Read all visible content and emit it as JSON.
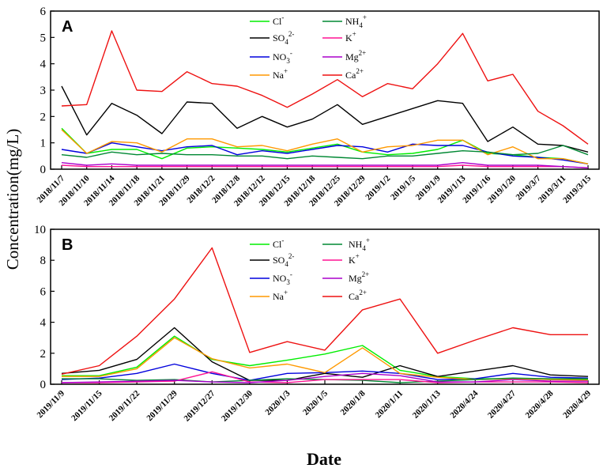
{
  "shared": {
    "ylabel": "Concentration(mg/L)",
    "xlabel": "Date"
  },
  "chart_data": [
    {
      "type": "line",
      "panel": "A",
      "ylim": [
        0,
        6
      ],
      "yticks": [
        "0",
        "1",
        "2",
        "3",
        "4",
        "5",
        "6"
      ],
      "legend_position": "top-center",
      "categories": [
        "2018/11/7",
        "2018/11/10",
        "2018/11/14",
        "2018/11/18",
        "2018/11/21",
        "2018/11/29",
        "2018/12/2",
        "2018/12/8",
        "2018/12/12",
        "2018/12/15",
        "2018/12/18",
        "2018/12/25",
        "2018/12/29",
        "2019/1/2",
        "2019/1/5",
        "2019/1/9",
        "2019/1/13",
        "2019/1/16",
        "2019/1/20",
        "2019/3/7",
        "2019/3/11",
        "2019/3/15"
      ],
      "series": [
        {
          "key": "Cl",
          "name": "Cl",
          "sup": "-",
          "sub": "",
          "color": "#00ee00",
          "values": [
            1.55,
            0.6,
            0.75,
            0.75,
            0.4,
            0.8,
            0.85,
            0.8,
            0.75,
            0.65,
            0.8,
            0.95,
            0.65,
            0.55,
            0.6,
            0.75,
            1.1,
            0.6,
            0.55,
            0.45,
            0.4,
            0.2
          ]
        },
        {
          "key": "SO4",
          "name": "SO",
          "sup": "2-",
          "sub": "4",
          "color": "#000000",
          "values": [
            3.15,
            1.3,
            2.5,
            2.05,
            1.35,
            2.55,
            2.5,
            1.55,
            2.0,
            1.6,
            1.9,
            2.45,
            1.7,
            2.0,
            2.3,
            2.6,
            2.5,
            1.05,
            1.6,
            0.95,
            0.9,
            0.65
          ]
        },
        {
          "key": "NO3",
          "name": "NO",
          "sup": "-",
          "sub": "3",
          "color": "#0000dd",
          "values": [
            0.75,
            0.6,
            1.0,
            0.85,
            0.7,
            0.85,
            0.9,
            0.55,
            0.7,
            0.6,
            0.75,
            0.9,
            0.85,
            0.65,
            0.95,
            0.9,
            0.9,
            0.65,
            0.5,
            0.45,
            0.35,
            0.2
          ]
        },
        {
          "key": "Na",
          "name": "Na",
          "sup": "+",
          "sub": "",
          "color": "#ff9900",
          "values": [
            1.5,
            0.6,
            1.05,
            1.0,
            0.65,
            1.15,
            1.15,
            0.85,
            0.9,
            0.7,
            0.95,
            1.15,
            0.65,
            0.85,
            0.9,
            1.1,
            1.1,
            0.55,
            0.85,
            0.4,
            0.4,
            0.2
          ]
        },
        {
          "key": "NH4",
          "name": "NH",
          "sup": "+",
          "sub": "4",
          "color": "#008833",
          "values": [
            0.55,
            0.45,
            0.65,
            0.55,
            0.6,
            0.55,
            0.55,
            0.5,
            0.5,
            0.4,
            0.5,
            0.45,
            0.4,
            0.5,
            0.5,
            0.6,
            0.7,
            0.65,
            0.55,
            0.6,
            0.9,
            0.55
          ]
        },
        {
          "key": "K",
          "name": "K",
          "sup": "+",
          "sub": "",
          "color": "#ff1493",
          "values": [
            0.15,
            0.1,
            0.1,
            0.1,
            0.1,
            0.1,
            0.1,
            0.1,
            0.1,
            0.1,
            0.1,
            0.1,
            0.1,
            0.1,
            0.1,
            0.1,
            0.15,
            0.1,
            0.1,
            0.1,
            0.1,
            0.05
          ]
        },
        {
          "key": "Mg",
          "name": "Mg",
          "sup": "2+",
          "sub": "",
          "color": "#aa00cc",
          "values": [
            0.25,
            0.15,
            0.2,
            0.15,
            0.15,
            0.15,
            0.15,
            0.15,
            0.15,
            0.15,
            0.15,
            0.15,
            0.15,
            0.15,
            0.15,
            0.15,
            0.25,
            0.15,
            0.15,
            0.15,
            0.1,
            0.05
          ]
        },
        {
          "key": "Ca",
          "name": "Ca",
          "sup": "2+",
          "sub": "",
          "color": "#ee1111",
          "values": [
            2.4,
            2.45,
            5.25,
            3.0,
            2.95,
            3.7,
            3.25,
            3.15,
            2.8,
            2.35,
            2.85,
            3.4,
            2.75,
            3.25,
            3.05,
            4.0,
            5.15,
            3.35,
            3.6,
            2.2,
            1.65,
            0.95
          ]
        }
      ]
    },
    {
      "type": "line",
      "panel": "B",
      "ylim": [
        0,
        10
      ],
      "yticks": [
        "0",
        "2",
        "4",
        "6",
        "8",
        "10"
      ],
      "legend_position": "top-center",
      "categories": [
        "2019/11/9",
        "2019/11/15",
        "2019/11/22",
        "2019/11/29",
        "2019/12/27",
        "2019/12/30",
        "2020/1/3",
        "2020/1/5",
        "2020/1/8",
        "2020/1/11",
        "2020/1/13",
        "2020/4/24",
        "2020/4/27",
        "2020/4/28",
        "2020/4/29"
      ],
      "series": [
        {
          "key": "Cl",
          "name": "Cl",
          "sup": "-",
          "sub": "",
          "color": "#00ee00",
          "values": [
            0.55,
            0.55,
            1.1,
            3.1,
            1.6,
            1.2,
            1.55,
            1.95,
            2.5,
            0.9,
            0.5,
            0.35,
            0.35,
            0.3,
            0.3
          ]
        },
        {
          "key": "SO4",
          "name": "SO",
          "sup": "2-",
          "sub": "4",
          "color": "#000000",
          "values": [
            0.7,
            0.9,
            1.6,
            3.65,
            1.45,
            0.25,
            0.25,
            0.7,
            0.45,
            1.2,
            0.5,
            0.85,
            1.2,
            0.6,
            0.5
          ]
        },
        {
          "key": "NO3",
          "name": "NO",
          "sup": "-",
          "sub": "3",
          "color": "#0000dd",
          "values": [
            0.3,
            0.4,
            0.7,
            1.3,
            0.7,
            0.25,
            0.7,
            0.75,
            0.85,
            0.7,
            0.3,
            0.35,
            0.7,
            0.45,
            0.4
          ]
        },
        {
          "key": "Na",
          "name": "Na",
          "sup": "+",
          "sub": "",
          "color": "#ff9900",
          "values": [
            0.5,
            0.5,
            1.0,
            3.0,
            1.65,
            1.05,
            1.3,
            0.75,
            2.35,
            0.7,
            0.45,
            0.3,
            0.35,
            0.3,
            0.25
          ]
        },
        {
          "key": "NH4",
          "name": "NH",
          "sup": "+",
          "sub": "4",
          "color": "#008833",
          "values": [
            0.35,
            0.35,
            0.25,
            0.3,
            0.15,
            0.25,
            0.35,
            0.3,
            0.25,
            0.1,
            0.2,
            0.3,
            0.4,
            0.35,
            0.35
          ]
        },
        {
          "key": "K",
          "name": "K",
          "sup": "+",
          "sub": "",
          "color": "#ff1493",
          "values": [
            0.1,
            0.1,
            0.15,
            0.2,
            0.8,
            0.15,
            0.1,
            0.3,
            0.3,
            0.3,
            0.1,
            0.15,
            0.15,
            0.15,
            0.1
          ]
        },
        {
          "key": "Mg",
          "name": "Mg",
          "sup": "2+",
          "sub": "",
          "color": "#aa00cc",
          "values": [
            0.1,
            0.15,
            0.2,
            0.25,
            0.15,
            0.1,
            0.25,
            0.5,
            0.7,
            0.55,
            0.15,
            0.15,
            0.3,
            0.2,
            0.2
          ]
        },
        {
          "key": "Ca",
          "name": "Ca",
          "sup": "2+",
          "sub": "",
          "color": "#ee1111",
          "values": [
            0.65,
            1.2,
            3.1,
            5.5,
            8.8,
            2.05,
            2.75,
            2.2,
            4.8,
            5.5,
            2.0,
            2.85,
            3.65,
            3.2,
            3.2
          ]
        }
      ]
    }
  ]
}
